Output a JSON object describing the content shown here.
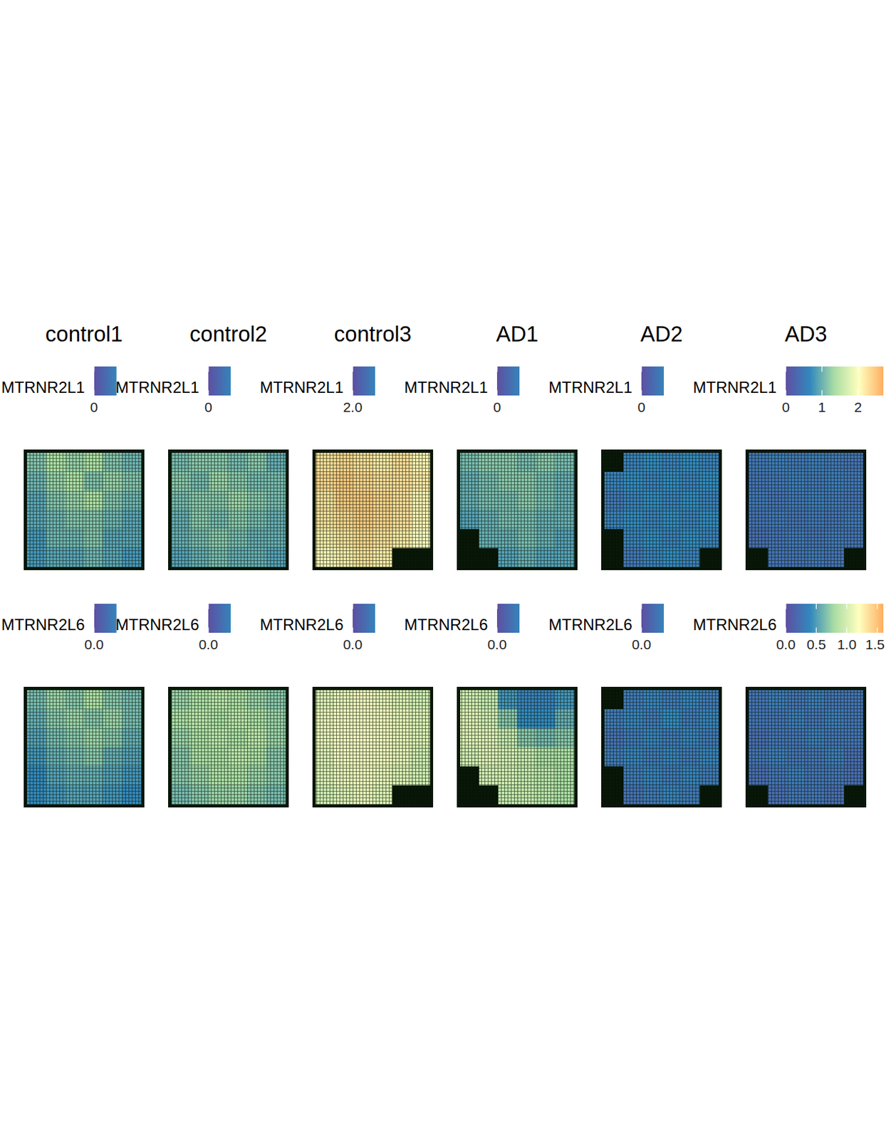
{
  "chart_data": {
    "type": "spatial_heatmap",
    "columns": [
      "control1",
      "control2",
      "control3",
      "AD1",
      "AD2",
      "AD3"
    ],
    "panels": [
      {
        "gene": "MTRNR2L1",
        "colorbar": {
          "range": [
            0,
            1.2
          ],
          "ticks": [
            0
          ]
        },
        "cells": [
          [
            0.5,
            0.6,
            0.55,
            0.6,
            0.5,
            0.45
          ],
          [
            0.45,
            0.55,
            0.6,
            0.5,
            0.55,
            0.5
          ],
          [
            0.4,
            0.5,
            0.55,
            0.6,
            0.5,
            0.45
          ],
          [
            0.4,
            0.45,
            0.5,
            0.5,
            0.45,
            0.4
          ],
          [
            0.35,
            0.45,
            0.45,
            0.5,
            0.4,
            0.4
          ],
          [
            0.35,
            0.4,
            0.4,
            0.45,
            0.4,
            0.35
          ]
        ]
      },
      {
        "gene": "MTRNR2L1",
        "colorbar": {
          "range": [
            0,
            1.4
          ],
          "ticks": [
            0
          ]
        },
        "cells": [
          [
            0.55,
            0.6,
            0.6,
            0.55,
            0.6,
            0.5
          ],
          [
            0.6,
            0.55,
            0.65,
            0.6,
            0.55,
            0.55
          ],
          [
            0.55,
            0.6,
            0.6,
            0.65,
            0.6,
            0.55
          ],
          [
            0.5,
            0.6,
            0.55,
            0.6,
            0.55,
            0.5
          ],
          [
            0.5,
            0.55,
            0.6,
            0.55,
            0.5,
            0.5
          ],
          [
            0.45,
            0.5,
            0.55,
            0.5,
            0.5,
            0.45
          ]
        ]
      },
      {
        "gene": "MTRNR2L1",
        "colorbar": {
          "range": [
            2.0,
            3.4
          ],
          "ticks": [
            {
              "value": 2,
              "label": "2.0"
            }
          ]
        },
        "cells": [
          [
            3.2,
            3.25,
            3.2,
            3.15,
            3.2,
            3.1
          ],
          [
            3.25,
            3.3,
            3.25,
            3.2,
            3.2,
            3.15
          ],
          [
            3.2,
            3.3,
            3.3,
            3.25,
            3.2,
            3.1
          ],
          [
            3.2,
            3.25,
            3.3,
            3.25,
            3.2,
            3.1
          ],
          [
            3.15,
            3.2,
            3.25,
            3.2,
            3.15,
            3.05
          ],
          [
            3.1,
            3.15,
            3.2,
            3.15,
            null,
            null
          ]
        ]
      },
      {
        "gene": "MTRNR2L1",
        "colorbar": {
          "range": [
            0,
            1.4
          ],
          "ticks": [
            0
          ]
        },
        "cells": [
          [
            0.55,
            0.6,
            0.6,
            0.55,
            0.6,
            0.55
          ],
          [
            0.5,
            0.55,
            0.6,
            0.6,
            0.55,
            0.5
          ],
          [
            0.5,
            0.55,
            0.55,
            0.6,
            0.55,
            0.5
          ],
          [
            0.45,
            0.5,
            0.55,
            0.55,
            0.5,
            0.5
          ],
          [
            null,
            0.5,
            0.5,
            0.55,
            0.5,
            0.45
          ],
          [
            null,
            null,
            0.45,
            0.5,
            0.45,
            0.45
          ]
        ]
      },
      {
        "gene": "MTRNR2L1",
        "colorbar": {
          "range": [
            0,
            1.2
          ],
          "ticks": [
            0
          ]
        },
        "cells": [
          [
            null,
            0.25,
            0.3,
            0.25,
            0.3,
            0.25
          ],
          [
            0.25,
            0.3,
            0.25,
            0.3,
            0.25,
            0.3
          ],
          [
            0.2,
            0.25,
            0.3,
            0.25,
            0.3,
            0.25
          ],
          [
            0.25,
            0.3,
            0.25,
            0.3,
            0.25,
            0.3
          ],
          [
            null,
            0.25,
            0.3,
            0.25,
            0.3,
            0.25
          ],
          [
            null,
            0.2,
            0.25,
            0.3,
            0.25,
            null
          ]
        ]
      },
      {
        "gene": "MTRNR2L1",
        "colorbar": {
          "range": [
            0,
            2.7
          ],
          "ticks": [
            0,
            1,
            2
          ]
        },
        "cells": [
          [
            0.45,
            0.5,
            0.45,
            0.5,
            0.45,
            0.4
          ],
          [
            0.4,
            0.45,
            0.5,
            0.45,
            0.5,
            0.45
          ],
          [
            0.45,
            0.4,
            0.45,
            0.5,
            0.45,
            0.4
          ],
          [
            0.4,
            0.45,
            0.4,
            0.45,
            0.4,
            0.45
          ],
          [
            0.35,
            0.4,
            0.45,
            0.4,
            0.45,
            0.4
          ],
          [
            null,
            0.4,
            0.4,
            0.45,
            0.4,
            null
          ]
        ]
      },
      {
        "gene": "MTRNR2L6",
        "colorbar": {
          "range": [
            0,
            1.4
          ],
          "ticks": [
            {
              "value": 0,
              "label": "0.0"
            }
          ]
        },
        "cells": [
          [
            0.55,
            0.65,
            0.6,
            0.7,
            0.6,
            0.55
          ],
          [
            0.5,
            0.6,
            0.65,
            0.6,
            0.65,
            0.55
          ],
          [
            0.45,
            0.55,
            0.6,
            0.65,
            0.6,
            0.5
          ],
          [
            0.4,
            0.5,
            0.55,
            0.6,
            0.5,
            0.45
          ],
          [
            0.35,
            0.45,
            0.5,
            0.5,
            0.45,
            0.4
          ],
          [
            0.35,
            0.4,
            0.45,
            0.45,
            0.4,
            0.35
          ]
        ]
      },
      {
        "gene": "MTRNR2L6",
        "colorbar": {
          "range": [
            0,
            1.4
          ],
          "ticks": [
            {
              "value": 0,
              "label": "0.0"
            }
          ]
        },
        "cells": [
          [
            0.65,
            0.7,
            0.75,
            0.7,
            0.65,
            0.6
          ],
          [
            0.7,
            0.75,
            0.7,
            0.75,
            0.7,
            0.65
          ],
          [
            0.65,
            0.7,
            0.75,
            0.7,
            0.75,
            0.65
          ],
          [
            0.6,
            0.7,
            0.7,
            0.75,
            0.7,
            0.6
          ],
          [
            0.6,
            0.65,
            0.7,
            0.7,
            0.65,
            0.6
          ],
          [
            0.55,
            0.6,
            0.65,
            0.65,
            0.6,
            0.55
          ]
        ]
      },
      {
        "gene": "MTRNR2L6",
        "colorbar": {
          "range": [
            0,
            1.4
          ],
          "ticks": [
            {
              "value": 0,
              "label": "0.0"
            }
          ]
        },
        "cells": [
          [
            0.9,
            0.95,
            1.0,
            0.95,
            0.9,
            0.85
          ],
          [
            0.95,
            1.0,
            1.0,
            1.0,
            0.95,
            0.9
          ],
          [
            0.95,
            1.0,
            1.05,
            1.0,
            0.95,
            0.9
          ],
          [
            0.9,
            1.0,
            1.0,
            1.0,
            0.95,
            0.85
          ],
          [
            0.9,
            0.95,
            1.0,
            0.95,
            0.9,
            0.85
          ],
          [
            0.85,
            0.9,
            0.95,
            0.9,
            null,
            null
          ]
        ]
      },
      {
        "gene": "MTRNR2L6",
        "colorbar": {
          "range": [
            0,
            1.4
          ],
          "ticks": [
            {
              "value": 0,
              "label": "0.0"
            }
          ]
        },
        "cells": [
          [
            0.85,
            0.8,
            0.4,
            0.3,
            0.3,
            0.4
          ],
          [
            0.9,
            0.85,
            0.6,
            0.35,
            0.35,
            0.5
          ],
          [
            0.9,
            0.9,
            0.8,
            0.6,
            0.55,
            0.6
          ],
          [
            0.85,
            0.9,
            0.85,
            0.8,
            0.7,
            0.7
          ],
          [
            null,
            0.85,
            0.85,
            0.8,
            0.75,
            0.7
          ],
          [
            null,
            null,
            0.8,
            0.8,
            0.75,
            0.7
          ]
        ]
      },
      {
        "gene": "MTRNR2L6",
        "colorbar": {
          "range": [
            0,
            1.4
          ],
          "ticks": [
            {
              "value": 0,
              "label": "0.0"
            }
          ]
        },
        "cells": [
          [
            null,
            0.25,
            0.3,
            0.25,
            0.3,
            0.25
          ],
          [
            0.25,
            0.3,
            0.25,
            0.35,
            0.25,
            0.3
          ],
          [
            0.2,
            0.25,
            0.3,
            0.25,
            0.3,
            0.25
          ],
          [
            0.25,
            0.3,
            0.25,
            0.3,
            0.25,
            0.3
          ],
          [
            null,
            0.25,
            0.3,
            0.25,
            0.3,
            0.25
          ],
          [
            null,
            0.2,
            0.25,
            0.3,
            0.25,
            null
          ]
        ]
      },
      {
        "gene": "MTRNR2L6",
        "colorbar": {
          "range": [
            0,
            1.6
          ],
          "ticks": [
            {
              "value": 0,
              "label": "0.0"
            },
            {
              "value": 0.5,
              "label": "0.5"
            },
            {
              "value": 1,
              "label": "1.0"
            },
            {
              "value": 1.5,
              "label": "1.5"
            }
          ]
        },
        "cells": [
          [
            0.25,
            0.3,
            0.25,
            0.3,
            0.25,
            0.25
          ],
          [
            0.25,
            0.25,
            0.3,
            0.25,
            0.3,
            0.25
          ],
          [
            0.2,
            0.25,
            0.25,
            0.3,
            0.25,
            0.25
          ],
          [
            0.25,
            0.3,
            0.25,
            0.25,
            0.3,
            0.2
          ],
          [
            0.2,
            0.25,
            0.3,
            0.25,
            0.25,
            0.2
          ],
          [
            null,
            0.2,
            0.25,
            0.25,
            0.2,
            null
          ]
        ]
      }
    ]
  }
}
